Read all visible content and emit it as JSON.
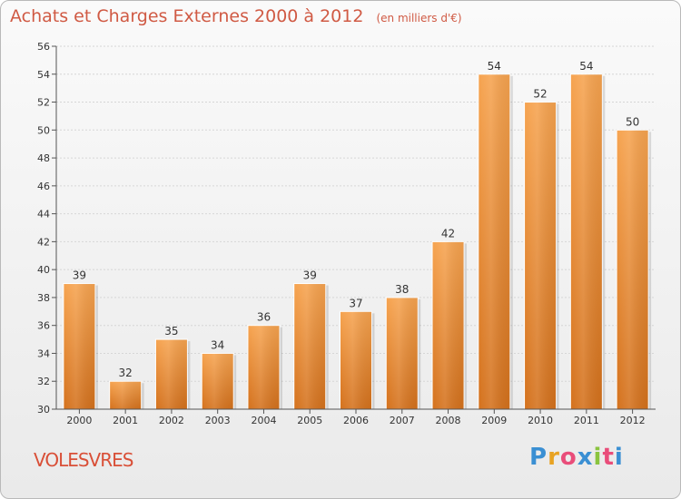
{
  "header": {
    "title": "Achats et Charges Externes 2000 à 2012",
    "unit": "(en milliers d'€)"
  },
  "footer": {
    "place": "VOLESVRES",
    "logo_text": "Proxiti"
  },
  "colors": {
    "bar_top": "#f6a34f",
    "bar_bottom": "#d4711c",
    "axis": "#555555",
    "grid": "#d6d6d6"
  },
  "chart_data": {
    "type": "bar",
    "title": "Achats et Charges Externes 2000 à 2012",
    "subtitle": "(en milliers d'€)",
    "xlabel": "",
    "ylabel": "",
    "categories": [
      "2000",
      "2001",
      "2002",
      "2003",
      "2004",
      "2005",
      "2006",
      "2007",
      "2008",
      "2009",
      "2010",
      "2011",
      "2012"
    ],
    "values": [
      39,
      32,
      35,
      34,
      36,
      39,
      37,
      38,
      42,
      54,
      52,
      54,
      50
    ],
    "ylim": [
      30,
      56
    ],
    "yticks": [
      30,
      32,
      34,
      36,
      38,
      40,
      42,
      44,
      46,
      48,
      50,
      52,
      54,
      56
    ],
    "grid": true,
    "data_labels": true
  }
}
